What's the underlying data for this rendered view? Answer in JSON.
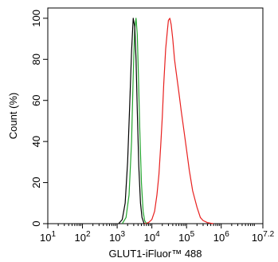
{
  "chart_data": {
    "type": "line",
    "title": "",
    "xlabel": "GLUT1-iFluor™ 488",
    "ylabel": "Count (%)",
    "xscale": "log",
    "xlim": [
      10,
      15848931.92
    ],
    "ylim": [
      0,
      105
    ],
    "grid": false,
    "legend": "none",
    "x_ticks": [
      {
        "value": 10,
        "base": "10",
        "exp": "1"
      },
      {
        "value": 100,
        "base": "10",
        "exp": "2"
      },
      {
        "value": 1000,
        "base": "10",
        "exp": "3"
      },
      {
        "value": 10000,
        "base": "10",
        "exp": "4"
      },
      {
        "value": 100000,
        "base": "10",
        "exp": "5"
      },
      {
        "value": 1000000,
        "base": "10",
        "exp": "6"
      },
      {
        "value": 15848931.92,
        "base": "10",
        "exp": "7.2"
      }
    ],
    "y_ticks": [
      0,
      20,
      40,
      60,
      80,
      100
    ],
    "series": [
      {
        "color": "#e8201f",
        "x": [
          6000,
          8000,
          10000,
          12000,
          14000,
          16000,
          18000,
          20000,
          22000,
          25000,
          28000,
          30000,
          33000,
          36000,
          40000,
          45000,
          50000,
          60000,
          70000,
          80000,
          100000,
          120000,
          150000,
          200000,
          250000,
          300000,
          400000,
          500000,
          600000
        ],
        "y": [
          0,
          0.5,
          2,
          6,
          14,
          24,
          38,
          52,
          68,
          85,
          94,
          99,
          100,
          97,
          90,
          80,
          74,
          64,
          55,
          48,
          36,
          26,
          16,
          8,
          3,
          1.5,
          0.5,
          0.2,
          0
        ]
      },
      {
        "color": "#23a52e",
        "x": [
          1400,
          1800,
          2200,
          2600,
          2900,
          3200,
          3500,
          3800,
          4100,
          4500,
          5000,
          5600,
          6200,
          7000
        ],
        "y": [
          0,
          3,
          14,
          40,
          72,
          95,
          100,
          92,
          72,
          45,
          20,
          6,
          1.5,
          0
        ]
      },
      {
        "color": "#000000",
        "x": [
          1100,
          1400,
          1700,
          2000,
          2300,
          2600,
          2900,
          3200,
          3500,
          3800,
          4200,
          4700,
          5200,
          6000
        ],
        "y": [
          0,
          2,
          10,
          30,
          58,
          84,
          100,
          96,
          80,
          55,
          28,
          10,
          3,
          0
        ]
      }
    ]
  }
}
